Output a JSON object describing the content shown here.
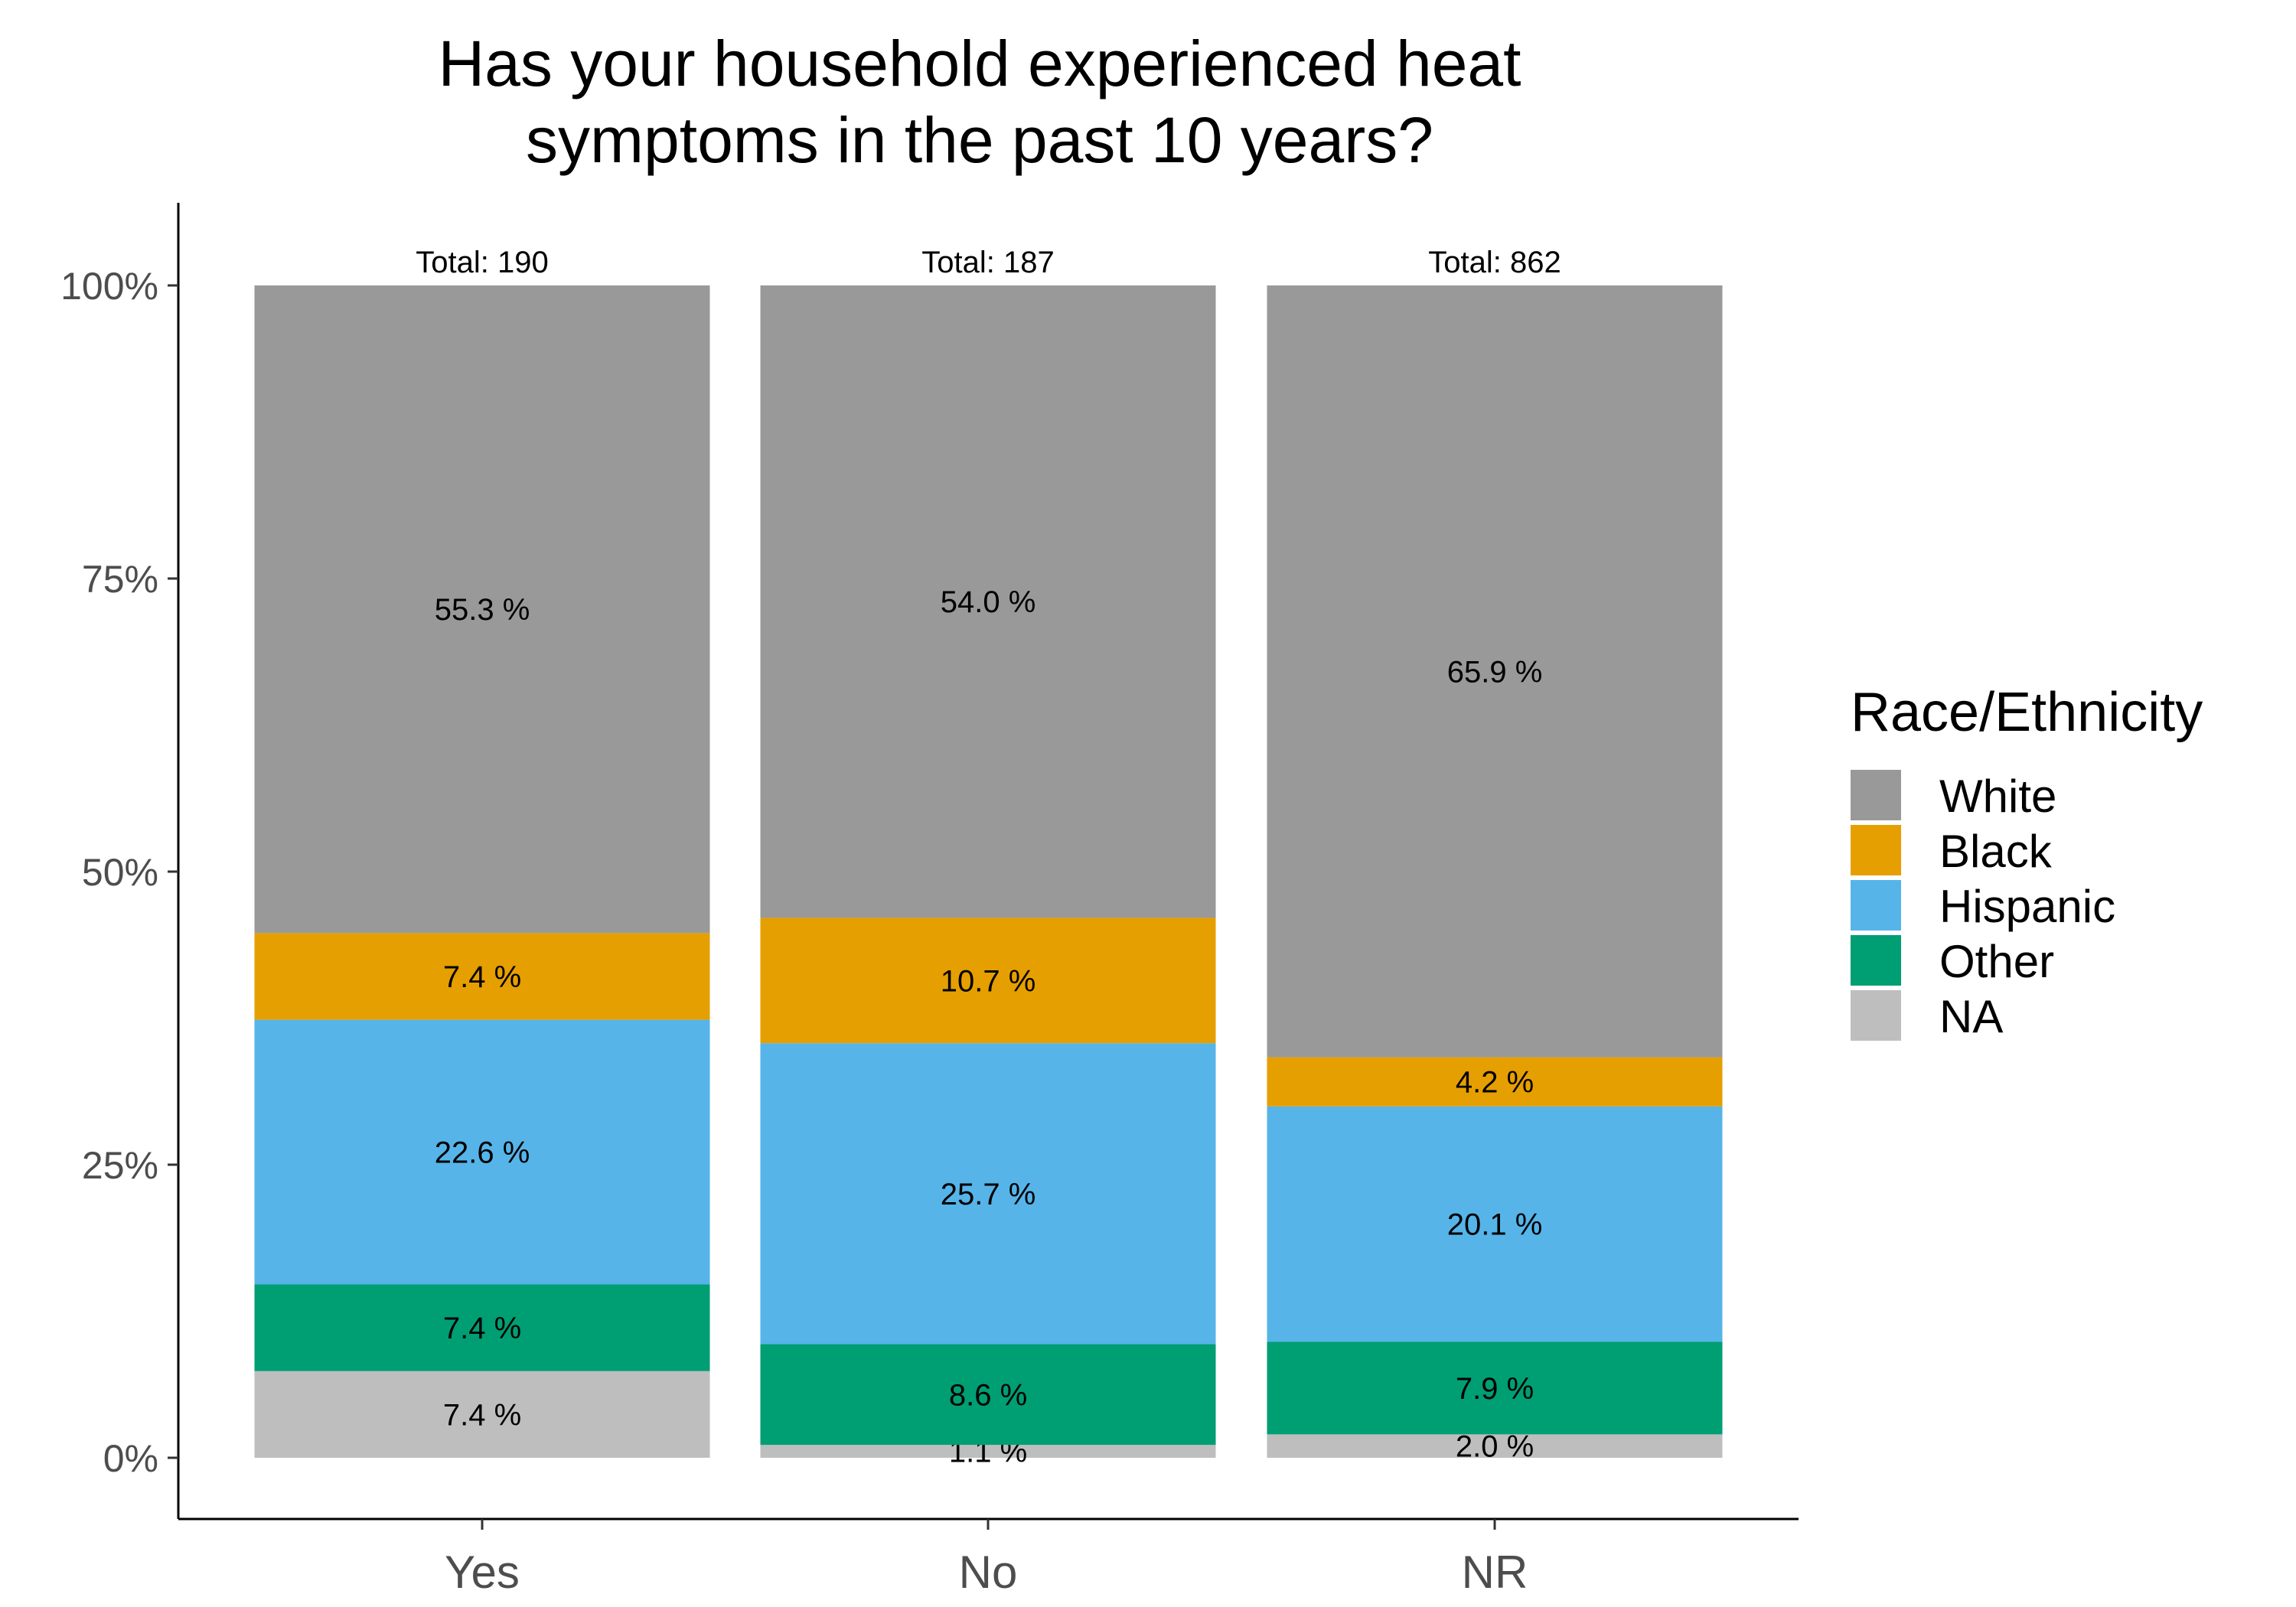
{
  "chart_data": {
    "type": "bar",
    "stacked": true,
    "normalized": true,
    "title_lines": [
      "Has your household experienced heat",
      "symptoms in the past 10 years?"
    ],
    "xlabel": "",
    "ylabel": "",
    "categories": [
      "Yes",
      "No",
      "NR"
    ],
    "totals": [
      190,
      187,
      862
    ],
    "total_prefix": "Total:  ",
    "yticks": [
      {
        "value": 0,
        "label": "0%"
      },
      {
        "value": 25,
        "label": "25%"
      },
      {
        "value": 50,
        "label": "50%"
      },
      {
        "value": 75,
        "label": "75%"
      },
      {
        "value": 100,
        "label": "100%"
      }
    ],
    "ylim": [
      -5,
      107
    ],
    "grid": false,
    "legend": {
      "title": "Race/Ethnicity",
      "position": "right"
    },
    "series": [
      {
        "name": "White",
        "color": "#999999",
        "values": [
          55.3,
          54.0,
          65.9
        ],
        "labels": [
          "55.3 %",
          "54.0 %",
          "65.9 %"
        ]
      },
      {
        "name": "Black",
        "color": "#E69F00",
        "values": [
          7.4,
          10.7,
          4.2
        ],
        "labels": [
          "7.4 %",
          "10.7 %",
          "4.2 %"
        ]
      },
      {
        "name": "Hispanic",
        "color": "#56B4E9",
        "values": [
          22.6,
          25.7,
          20.1
        ],
        "labels": [
          "22.6 %",
          "25.7 %",
          "20.1 %"
        ]
      },
      {
        "name": "Other",
        "color": "#009E73",
        "values": [
          7.4,
          8.6,
          7.9
        ],
        "labels": [
          "7.4 %",
          "8.6 %",
          "7.9 %"
        ]
      },
      {
        "name": "NA",
        "color": "#BEBEBE",
        "values": [
          7.4,
          1.1,
          2.0
        ],
        "labels": [
          "7.4 %",
          "1.1 %",
          "2.0 %"
        ]
      }
    ]
  }
}
